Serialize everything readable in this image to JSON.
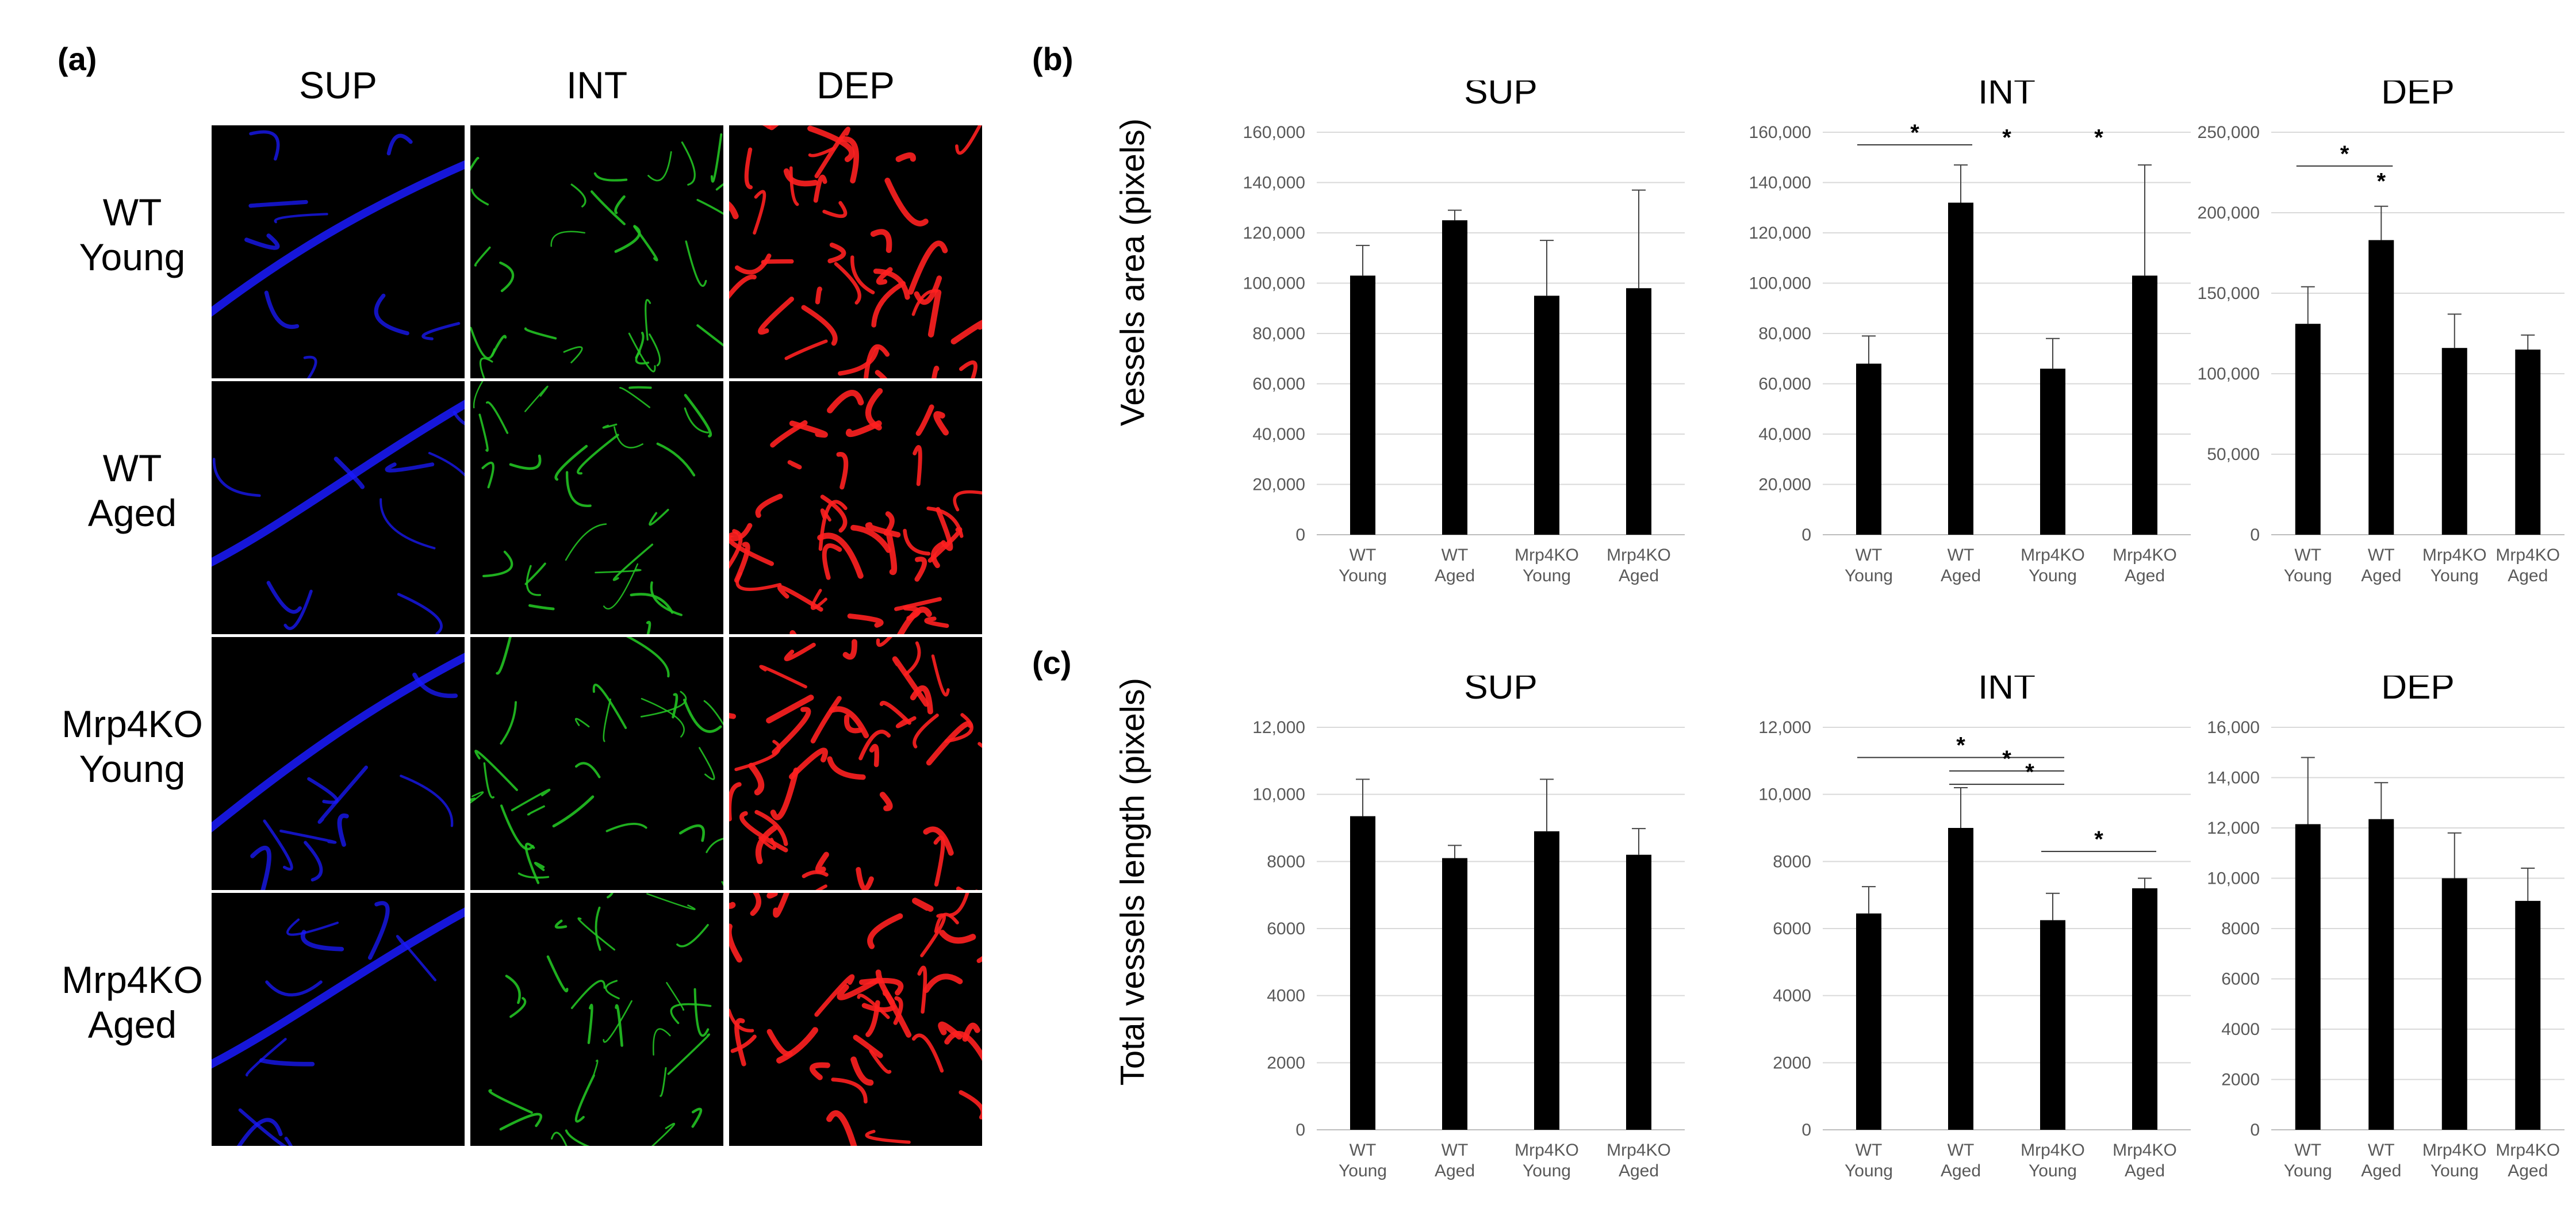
{
  "panel_labels": {
    "a": "(a)",
    "b": "(b)",
    "c": "(c)"
  },
  "panel_a": {
    "columns": [
      "SUP",
      "INT",
      "DEP"
    ],
    "rows": [
      {
        "line1": "WT",
        "line2": "Young"
      },
      {
        "line1": "WT",
        "line2": "Aged"
      },
      {
        "line1": "Mrp4KO",
        "line2": "Young"
      },
      {
        "line1": "Mrp4KO",
        "line2": "Aged"
      }
    ],
    "colors": {
      "SUP": "#1a1aff",
      "INT": "#22c222",
      "DEP": "#ff2020"
    }
  },
  "y_labels": {
    "b": "Vessels area (pixels)",
    "c": "Total vessels length (pixels)"
  },
  "chart_data": [
    {
      "id": "b-sup",
      "type": "bar",
      "title": "SUP",
      "categories": [
        [
          "WT",
          "Young"
        ],
        [
          "WT",
          "Aged"
        ],
        [
          "Mrp4KO",
          "Young"
        ],
        [
          "Mrp4KO",
          "Aged"
        ]
      ],
      "values": [
        103000,
        125000,
        95000,
        98000
      ],
      "errors": [
        12000,
        4000,
        22000,
        39000
      ],
      "ylim": [
        0,
        160000
      ],
      "ticks": [
        "0",
        "20,000",
        "40,000",
        "60,000",
        "80,000",
        "100,000",
        "120,000",
        "140,000",
        "160,000"
      ],
      "ylabel": "Vessels area (pixels)",
      "significance": []
    },
    {
      "id": "b-int",
      "type": "bar",
      "title": "INT",
      "categories": [
        [
          "WT",
          "Young"
        ],
        [
          "WT",
          "Aged"
        ],
        [
          "Mrp4KO",
          "Young"
        ],
        [
          "Mrp4KO",
          "Aged"
        ]
      ],
      "values": [
        68000,
        132000,
        66000,
        103000
      ],
      "errors": [
        11000,
        15000,
        12000,
        44000
      ],
      "ylim": [
        0,
        160000
      ],
      "ticks": [
        "0",
        "20,000",
        "40,000",
        "60,000",
        "80,000",
        "100,000",
        "120,000",
        "140,000",
        "160,000"
      ],
      "ylabel": "Vessels area (pixels)",
      "significance": [
        {
          "from": 0,
          "to": 1,
          "level": 155000,
          "label": "*"
        },
        {
          "from": 1,
          "to": 2,
          "level": 153000,
          "label": "*",
          "noline": true
        },
        {
          "from": 2,
          "to": 3,
          "level": 153000,
          "label": "*",
          "noline": true
        }
      ]
    },
    {
      "id": "b-dep",
      "type": "bar",
      "title": "DEP",
      "categories": [
        [
          "WT",
          "Young"
        ],
        [
          "WT",
          "Aged"
        ],
        [
          "Mrp4KO",
          "Young"
        ],
        [
          "Mrp4KO",
          "Aged"
        ]
      ],
      "values": [
        131000,
        183000,
        116000,
        115000
      ],
      "errors": [
        23000,
        21000,
        21000,
        9000
      ],
      "ylim": [
        0,
        250000
      ],
      "ticks": [
        "0",
        "50,000",
        "100,000",
        "150,000",
        "200,000",
        "250,000"
      ],
      "ylabel": "Vessels area (pixels)",
      "significance": [
        {
          "from": 0,
          "to": 1,
          "level": 229000,
          "label": "*"
        },
        {
          "from": 1,
          "to": 1,
          "level": 212000,
          "label": "*",
          "noline": true
        }
      ]
    },
    {
      "id": "c-sup",
      "type": "bar",
      "title": "SUP",
      "categories": [
        [
          "WT",
          "Young"
        ],
        [
          "WT",
          "Aged"
        ],
        [
          "Mrp4KO",
          "Young"
        ],
        [
          "Mrp4KO",
          "Aged"
        ]
      ],
      "values": [
        9350,
        8100,
        8900,
        8200
      ],
      "errors": [
        1100,
        380,
        1550,
        780
      ],
      "ylim": [
        0,
        12000
      ],
      "ticks": [
        "0",
        "2000",
        "4000",
        "6000",
        "8000",
        "10,000",
        "12,000"
      ],
      "ylabel": "Total vessels length (pixels)",
      "significance": []
    },
    {
      "id": "c-int",
      "type": "bar",
      "title": "INT",
      "categories": [
        [
          "WT",
          "Young"
        ],
        [
          "WT",
          "Aged"
        ],
        [
          "Mrp4KO",
          "Young"
        ],
        [
          "Mrp4KO",
          "Aged"
        ]
      ],
      "values": [
        6450,
        9000,
        6250,
        7200
      ],
      "errors": [
        800,
        1200,
        800,
        300
      ],
      "ylim": [
        0,
        12000
      ],
      "ticks": [
        "0",
        "2000",
        "4000",
        "6000",
        "8000",
        "10,000",
        "12,000"
      ],
      "ylabel": "Total vessels length (pixels)",
      "significance": [
        {
          "from": 0,
          "to": 2,
          "level": 11100,
          "label": "*"
        },
        {
          "from": 1,
          "to": 2,
          "level": 10700,
          "label": "*"
        },
        {
          "from": 1,
          "to": 2,
          "level": 10300,
          "label": "*",
          "offset": 0.7
        },
        {
          "from": 2,
          "to": 3,
          "level": 8300,
          "label": "*"
        }
      ]
    },
    {
      "id": "c-dep",
      "type": "bar",
      "title": "DEP",
      "categories": [
        [
          "WT",
          "Young"
        ],
        [
          "WT",
          "Aged"
        ],
        [
          "Mrp4KO",
          "Young"
        ],
        [
          "Mrp4KO",
          "Aged"
        ]
      ],
      "values": [
        12150,
        12350,
        10000,
        9100
      ],
      "errors": [
        2650,
        1450,
        1800,
        1300
      ],
      "ylim": [
        0,
        16000
      ],
      "ticks": [
        "0",
        "2000",
        "4000",
        "6000",
        "8000",
        "10,000",
        "12,000",
        "14,000",
        "16,000"
      ],
      "ylabel": "Total vessels length (pixels)",
      "significance": []
    }
  ]
}
